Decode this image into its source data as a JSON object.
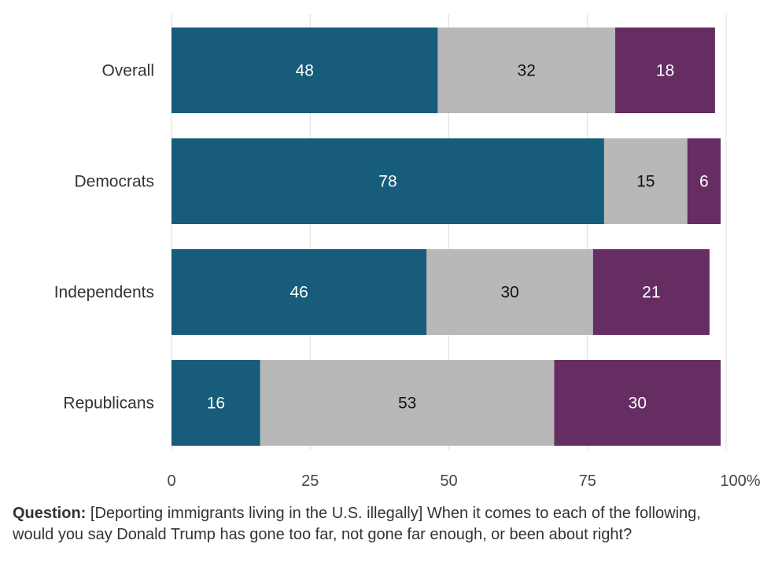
{
  "chart_data": {
    "type": "bar",
    "orientation": "horizontal",
    "stacked": true,
    "categories": [
      "Overall",
      "Democrats",
      "Independents",
      "Republicans"
    ],
    "series": [
      {
        "values": [
          48,
          78,
          46,
          16
        ],
        "color": "#175c7a",
        "label_color": "#ffffff"
      },
      {
        "values": [
          32,
          15,
          30,
          53
        ],
        "color": "#b8b8b8",
        "label_color": "#111111"
      },
      {
        "values": [
          18,
          6,
          21,
          30
        ],
        "color": "#652d61",
        "label_color": "#ffffff"
      }
    ],
    "xlim": [
      0,
      100
    ],
    "xticks": [
      "0",
      "25",
      "50",
      "75",
      "100%"
    ],
    "grid": true
  },
  "footer": {
    "question_label": "Question:",
    "question_text": " [Deporting immigrants living in the U.S. illegally] When it comes to each of the following, would you say Donald Trump has gone too far, not gone far enough, or been about right?"
  }
}
